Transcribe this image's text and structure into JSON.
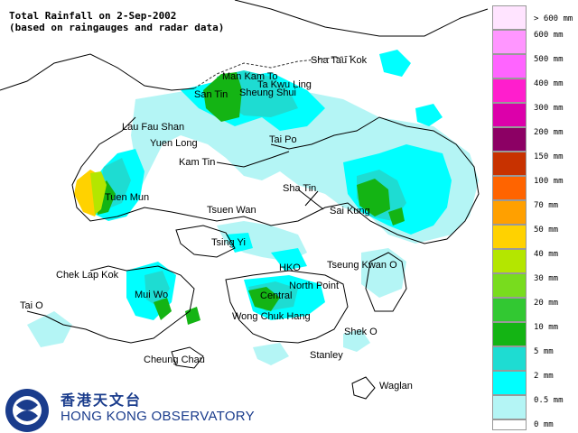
{
  "title_line1": "Total Rainfall on 2-Sep-2002",
  "title_line2": "(based on raingauges and radar data)",
  "places": [
    {
      "name": "Sha Tau Kok",
      "id": "sha-tau-kok"
    },
    {
      "name": "Man Kam To",
      "id": "man-kam-to"
    },
    {
      "name": "Ta Kwu Ling",
      "id": "ta-kwu-ling"
    },
    {
      "name": "San Tin",
      "id": "san-tin"
    },
    {
      "name": "Sheung Shui",
      "id": "sheung-shui"
    },
    {
      "name": "Lau Fau Shan",
      "id": "lau-fau-shan"
    },
    {
      "name": "Tai Po",
      "id": "tai-po"
    },
    {
      "name": "Yuen Long",
      "id": "yuen-long"
    },
    {
      "name": "Kam Tin",
      "id": "kam-tin"
    },
    {
      "name": "Sha Tin",
      "id": "sha-tin"
    },
    {
      "name": "Tuen Mun",
      "id": "tuen-mun"
    },
    {
      "name": "Tsuen Wan",
      "id": "tsuen-wan"
    },
    {
      "name": "Sai Kung",
      "id": "sai-kung"
    },
    {
      "name": "Tsing Yi",
      "id": "tsing-yi"
    },
    {
      "name": "Chek Lap Kok",
      "id": "chek-lap-kok"
    },
    {
      "name": "HKO",
      "id": "hko"
    },
    {
      "name": "Tseung Kwan O",
      "id": "tseung-kwan-o"
    },
    {
      "name": "North Point",
      "id": "north-point"
    },
    {
      "name": "Mui Wo",
      "id": "mui-wo"
    },
    {
      "name": "Central",
      "id": "central"
    },
    {
      "name": "Tai O",
      "id": "tai-o"
    },
    {
      "name": "Wong Chuk Hang",
      "id": "wong-chuk-hang"
    },
    {
      "name": "Shek O",
      "id": "shek-o"
    },
    {
      "name": "Stanley",
      "id": "stanley"
    },
    {
      "name": "Cheung Chau",
      "id": "cheung-chau"
    },
    {
      "name": "Waglan",
      "id": "waglan"
    }
  ],
  "legend": [
    {
      "label": "> 600 mm",
      "color": "#ffe4ff"
    },
    {
      "label": "600 mm",
      "color": "#ff96ff"
    },
    {
      "label": "500 mm",
      "color": "#ff64ff"
    },
    {
      "label": "400 mm",
      "color": "#ff1ecd"
    },
    {
      "label": "300 mm",
      "color": "#dc00aa"
    },
    {
      "label": "200 mm",
      "color": "#8c0064"
    },
    {
      "label": "150 mm",
      "color": "#c83200"
    },
    {
      "label": "100 mm",
      "color": "#ff6400"
    },
    {
      "label": "70 mm",
      "color": "#ffa000"
    },
    {
      "label": "50 mm",
      "color": "#ffd200"
    },
    {
      "label": "40 mm",
      "color": "#b4e600"
    },
    {
      "label": "30 mm",
      "color": "#78dc1e"
    },
    {
      "label": "20 mm",
      "color": "#32c832"
    },
    {
      "label": "10 mm",
      "color": "#14b414"
    },
    {
      "label": "5 mm",
      "color": "#1edcd2"
    },
    {
      "label": "2 mm",
      "color": "#00ffff"
    },
    {
      "label": "0.5 mm",
      "color": "#b4f5f5"
    },
    {
      "label": "0 mm",
      "color": "#ffffff"
    }
  ],
  "logo": {
    "chinese": "香港天文台",
    "english": "HONG KONG OBSERVATORY",
    "brand_color": "#1a3c8c"
  },
  "colors": {
    "coast": "#000000",
    "border": "#333333",
    "land": "#ffffff"
  }
}
